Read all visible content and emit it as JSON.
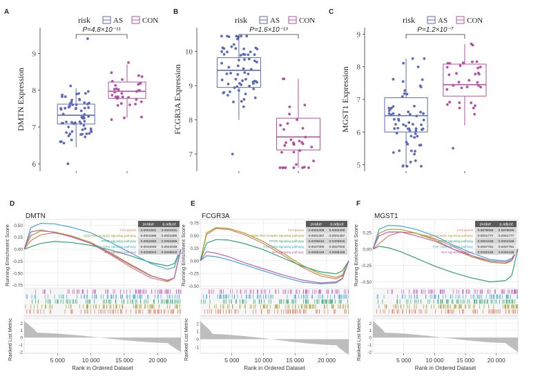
{
  "colors": {
    "as": "#5b6ab9",
    "con": "#b44fa5",
    "grey": "#bdbdbd",
    "gsea": [
      "#e27a62",
      "#a4a12c",
      "#2ca46e",
      "#43a6d6",
      "#c05cb8"
    ]
  },
  "chart_data": [
    {
      "id": "A",
      "type": "scatter",
      "subtype": "box-jitter",
      "panel_label": "A",
      "legend_title": "risk",
      "legend": [
        "AS",
        "CON"
      ],
      "ylabel": "DMTN Expression",
      "ylim": [
        5.8,
        9.7
      ],
      "yticks": [
        6,
        7,
        8,
        9
      ],
      "pvalue": "P=4.8×10⁻¹¹",
      "groups": [
        {
          "name": "AS",
          "q1": 7.08,
          "median": 7.32,
          "q3": 7.62,
          "whisker_low": 6.45,
          "whisker_high": 8.05,
          "n": 68,
          "min": 6.0,
          "max": 9.4
        },
        {
          "name": "CON",
          "q1": 7.78,
          "median": 7.97,
          "q3": 8.22,
          "whisker_low": 7.25,
          "whisker_high": 8.7,
          "n": 34,
          "min": 7.2,
          "max": 8.75
        }
      ]
    },
    {
      "id": "B",
      "type": "scatter",
      "subtype": "box-jitter",
      "panel_label": "B",
      "legend_title": "risk",
      "legend": [
        "AS",
        "CON"
      ],
      "ylabel": "FCGR3A Expression",
      "ylim": [
        6.5,
        10.7
      ],
      "yticks": [
        7,
        8,
        9,
        10
      ],
      "pvalue": "P=1.6×10⁻¹³",
      "groups": [
        {
          "name": "AS",
          "q1": 8.95,
          "median": 9.45,
          "q3": 9.82,
          "whisker_low": 8.0,
          "whisker_high": 10.4,
          "n": 68,
          "min": 7.0,
          "max": 10.45
        },
        {
          "name": "CON",
          "q1": 7.12,
          "median": 7.5,
          "q3": 8.05,
          "whisker_low": 6.6,
          "whisker_high": 9.2,
          "n": 34,
          "min": 6.6,
          "max": 9.2
        }
      ]
    },
    {
      "id": "C",
      "type": "scatter",
      "subtype": "box-jitter",
      "panel_label": "C",
      "legend_title": "risk",
      "legend": [
        "AS",
        "CON"
      ],
      "ylabel": "MGST1 Expression",
      "ylim": [
        4.8,
        9.2
      ],
      "yticks": [
        5,
        6,
        7,
        8,
        9
      ],
      "pvalue": "P=1.2×10⁻⁷",
      "groups": [
        {
          "name": "AS",
          "q1": 6.0,
          "median": 6.5,
          "q3": 7.05,
          "whisker_low": 4.95,
          "whisker_high": 8.25,
          "n": 68,
          "min": 4.95,
          "max": 8.25
        },
        {
          "name": "CON",
          "q1": 7.1,
          "median": 7.45,
          "q3": 8.08,
          "whisker_low": 6.2,
          "whisker_high": 8.7,
          "n": 34,
          "min": 5.5,
          "max": 8.7
        }
      ]
    },
    {
      "id": "D",
      "type": "line",
      "subtype": "gsea",
      "panel_label": "D",
      "gene": "DMTN",
      "ylabel_top": "Running Enrichment Score",
      "ylabel_bottom": "Ranked List Metric",
      "xlabel": "Rank in Ordered Dataset",
      "xlim": [
        0,
        23500
      ],
      "xticks": [
        5000,
        10000,
        15000,
        20000
      ],
      "xtick_labels": [
        "5 000",
        "10 000",
        "15 000",
        "20 000"
      ],
      "ylim_top": [
        -0.82,
        0.62
      ],
      "yticks_top": [
        -0.75,
        -0.5,
        -0.25,
        0.0,
        0.25,
        0.5
      ],
      "ytick_labels_top": [
        "-0.75",
        "-0.50",
        "-0.25",
        "0.00",
        "0.25",
        "0.50"
      ],
      "ylim_bottom": [
        -2.2,
        2.6
      ],
      "yticks_bottom": [
        -2,
        -1,
        0,
        1,
        2
      ],
      "table_header": [
        "pvalue",
        "p.adjust"
      ],
      "series": [
        {
          "name": "Ferroptosis",
          "pvalue": "0.0001931",
          "padjust": "0.0001931",
          "x": [
            0,
            1000,
            2500,
            4500,
            7000,
            10000,
            13000,
            16000,
            19000,
            21500,
            22500,
            23500
          ],
          "y": [
            0.0,
            0.18,
            0.3,
            0.34,
            0.28,
            0.12,
            -0.12,
            -0.38,
            -0.6,
            -0.68,
            -0.6,
            0.0
          ]
        },
        {
          "name": "NOD−like receptor signaling pathway",
          "pvalue": "0.0001686",
          "padjust": "0.0001686",
          "x": [
            0,
            1000,
            2500,
            4500,
            7000,
            10000,
            13000,
            16000,
            19000,
            21500,
            22500,
            23500
          ],
          "y": [
            0.0,
            0.28,
            0.38,
            0.36,
            0.28,
            0.14,
            -0.08,
            -0.32,
            -0.55,
            -0.66,
            -0.6,
            0.0
          ]
        },
        {
          "name": "PPAR signaling pathway",
          "pvalue": "0.0052586",
          "padjust": "0.0052586",
          "x": [
            0,
            1000,
            2500,
            4500,
            7000,
            10000,
            13000,
            16000,
            19000,
            21500,
            22500,
            23500
          ],
          "y": [
            0.0,
            0.05,
            0.12,
            0.16,
            0.14,
            0.08,
            -0.02,
            -0.14,
            -0.28,
            -0.35,
            -0.3,
            0.0
          ]
        },
        {
          "name": "TGF−beta signaling pathway",
          "pvalue": "0.0044049",
          "padjust": "0.0044048",
          "x": [
            0,
            1000,
            2500,
            4500,
            7000,
            10000,
            13000,
            16000,
            19000,
            21500,
            22500,
            23500
          ],
          "y": [
            0.0,
            0.45,
            0.54,
            0.53,
            0.46,
            0.34,
            0.14,
            -0.08,
            -0.3,
            -0.42,
            -0.38,
            0.0
          ]
        },
        {
          "name": "Wnt signaling pathway",
          "pvalue": "0.0008503",
          "padjust": "0.0008503",
          "x": [
            0,
            1000,
            2500,
            4500,
            7000,
            10000,
            13000,
            16000,
            19000,
            21500,
            22500,
            23500
          ],
          "y": [
            0.0,
            0.36,
            0.4,
            0.35,
            0.26,
            0.12,
            -0.1,
            -0.34,
            -0.56,
            -0.65,
            -0.6,
            0.0
          ]
        }
      ]
    },
    {
      "id": "E",
      "type": "line",
      "subtype": "gsea",
      "panel_label": "E",
      "gene": "FCGR3A",
      "ylabel_top": "Running Enrichment Score",
      "ylabel_bottom": "Ranked List Metric",
      "xlabel": "Rank in Ordered Dataset",
      "xlim": [
        0,
        23500
      ],
      "xticks": [
        5000,
        10000,
        15000,
        20000
      ],
      "xtick_labels": [
        "5 000",
        "10 000",
        "15 000",
        "20 000"
      ],
      "ylim_top": [
        -0.55,
        0.82
      ],
      "yticks_top": [
        -0.5,
        -0.25,
        0.0,
        0.25,
        0.5,
        0.75
      ],
      "ytick_labels_top": [
        "-0.50",
        "-0.25",
        "0.00",
        "0.25",
        "0.50",
        "0.75"
      ],
      "ylim_bottom": [
        -1.8,
        2.6
      ],
      "yticks_bottom": [
        -1,
        0,
        1,
        2
      ],
      "table_header": [
        "pvalue",
        "p.adjust"
      ],
      "series": [
        {
          "name": "Ferroptosis",
          "pvalue": "0.0003409",
          "padjust": "0.0003409",
          "x": [
            0,
            1000,
            2500,
            4500,
            7000,
            10000,
            13000,
            16000,
            19000,
            21500,
            22500,
            23500
          ],
          "y": [
            0.0,
            0.52,
            0.64,
            0.62,
            0.52,
            0.34,
            0.12,
            -0.12,
            -0.3,
            -0.36,
            -0.3,
            0.0
          ]
        },
        {
          "name": "NOD−like receptor signaling pathway",
          "pvalue": "0.0001457",
          "padjust": "0.0001457",
          "x": [
            0,
            1000,
            2500,
            4500,
            7000,
            10000,
            13000,
            16000,
            19000,
            21500,
            22500,
            23500
          ],
          "y": [
            0.0,
            0.55,
            0.66,
            0.64,
            0.55,
            0.38,
            0.16,
            -0.08,
            -0.26,
            -0.33,
            -0.28,
            0.0
          ]
        },
        {
          "name": "PPAR signaling pathway",
          "pvalue": "0.0209816",
          "padjust": "0.0209816",
          "x": [
            0,
            1000,
            2500,
            4500,
            7000,
            10000,
            13000,
            16000,
            19000,
            21500,
            22500,
            23500
          ],
          "y": [
            0.0,
            0.35,
            0.42,
            0.41,
            0.34,
            0.22,
            0.06,
            -0.1,
            -0.22,
            -0.26,
            -0.2,
            0.0
          ]
        },
        {
          "name": "TGF−beta signaling pathway",
          "pvalue": "0.0027000",
          "padjust": "0.0027000",
          "x": [
            0,
            1000,
            2500,
            4500,
            7000,
            10000,
            13000,
            16000,
            19000,
            21500,
            22500,
            23500
          ],
          "y": [
            0.0,
            0.1,
            0.08,
            0.02,
            -0.08,
            -0.2,
            -0.32,
            -0.42,
            -0.46,
            -0.44,
            -0.36,
            0.0
          ]
        },
        {
          "name": "Wnt signaling pathway",
          "pvalue": "0.0088449",
          "padjust": "0.0088449",
          "x": [
            0,
            1000,
            2500,
            4500,
            7000,
            10000,
            13000,
            16000,
            19000,
            21500,
            22500,
            23500
          ],
          "y": [
            0.0,
            0.18,
            0.15,
            0.08,
            -0.04,
            -0.16,
            -0.28,
            -0.38,
            -0.44,
            -0.42,
            -0.35,
            0.0
          ]
        }
      ]
    },
    {
      "id": "F",
      "type": "line",
      "subtype": "gsea",
      "panel_label": "F",
      "gene": "MGST1",
      "ylabel_top": "Running Enrichment Score",
      "ylabel_bottom": "Ranked List Metric",
      "xlabel": "Rank in Ordered Dataset",
      "xlim": [
        0,
        23500
      ],
      "xticks": [
        5000,
        10000,
        15000,
        20000
      ],
      "xtick_labels": [
        "5 000",
        "10 000",
        "15 000",
        "20 000"
      ],
      "ylim_top": [
        -0.6,
        0.45
      ],
      "yticks_top": [
        -0.5,
        -0.25,
        0.0,
        0.25
      ],
      "ytick_labels_top": [
        "-0.50",
        "-0.25",
        "0.00",
        "0.25"
      ],
      "ylim_bottom": [
        -2.2,
        2.6
      ],
      "yticks_bottom": [
        -2,
        -1,
        0,
        1,
        2
      ],
      "table_header": [
        "pvalue",
        "p.adjust"
      ],
      "series": [
        {
          "name": "Ferroptosis",
          "pvalue": "0.5878059",
          "padjust": "0.5878059",
          "x": [
            0,
            1000,
            2500,
            4500,
            7000,
            10000,
            13000,
            16000,
            19000,
            21500,
            22500,
            23500
          ],
          "y": [
            0.0,
            0.08,
            0.2,
            0.26,
            0.24,
            0.16,
            0.04,
            -0.1,
            -0.2,
            -0.22,
            -0.18,
            0.0
          ]
        },
        {
          "name": "NOD−like receptor signaling pathway",
          "pvalue": "0.0001777",
          "padjust": "0.0001777",
          "x": [
            0,
            1000,
            2500,
            4500,
            7000,
            10000,
            13000,
            16000,
            19000,
            21500,
            22500,
            23500
          ],
          "y": [
            0.0,
            0.24,
            0.3,
            0.3,
            0.24,
            0.14,
            0.0,
            -0.12,
            -0.2,
            -0.22,
            -0.16,
            0.0
          ]
        },
        {
          "name": "PPAR signaling pathway",
          "pvalue": "0.0004188",
          "padjust": "0.0004188",
          "x": [
            0,
            1000,
            2500,
            4500,
            7000,
            10000,
            13000,
            16000,
            19000,
            21500,
            22500,
            23500
          ],
          "y": [
            0.0,
            0.04,
            0.02,
            -0.04,
            -0.14,
            -0.26,
            -0.36,
            -0.44,
            -0.5,
            -0.48,
            -0.4,
            0.0
          ]
        },
        {
          "name": "TGF−beta signaling pathway",
          "pvalue": "0.0007751",
          "padjust": "0.0007751",
          "x": [
            0,
            1000,
            2500,
            4500,
            7000,
            10000,
            13000,
            16000,
            19000,
            21500,
            22500,
            23500
          ],
          "y": [
            0.0,
            0.3,
            0.36,
            0.35,
            0.3,
            0.2,
            0.06,
            -0.06,
            -0.16,
            -0.18,
            -0.14,
            0.0
          ]
        },
        {
          "name": "Wnt signaling pathway",
          "pvalue": "0.0292186",
          "padjust": "0.0292186",
          "x": [
            0,
            1000,
            2500,
            4500,
            7000,
            10000,
            13000,
            16000,
            19000,
            21500,
            22500,
            23500
          ],
          "y": [
            0.0,
            0.2,
            0.26,
            0.26,
            0.2,
            0.12,
            0.0,
            -0.1,
            -0.18,
            -0.2,
            -0.16,
            0.0
          ]
        }
      ]
    }
  ]
}
